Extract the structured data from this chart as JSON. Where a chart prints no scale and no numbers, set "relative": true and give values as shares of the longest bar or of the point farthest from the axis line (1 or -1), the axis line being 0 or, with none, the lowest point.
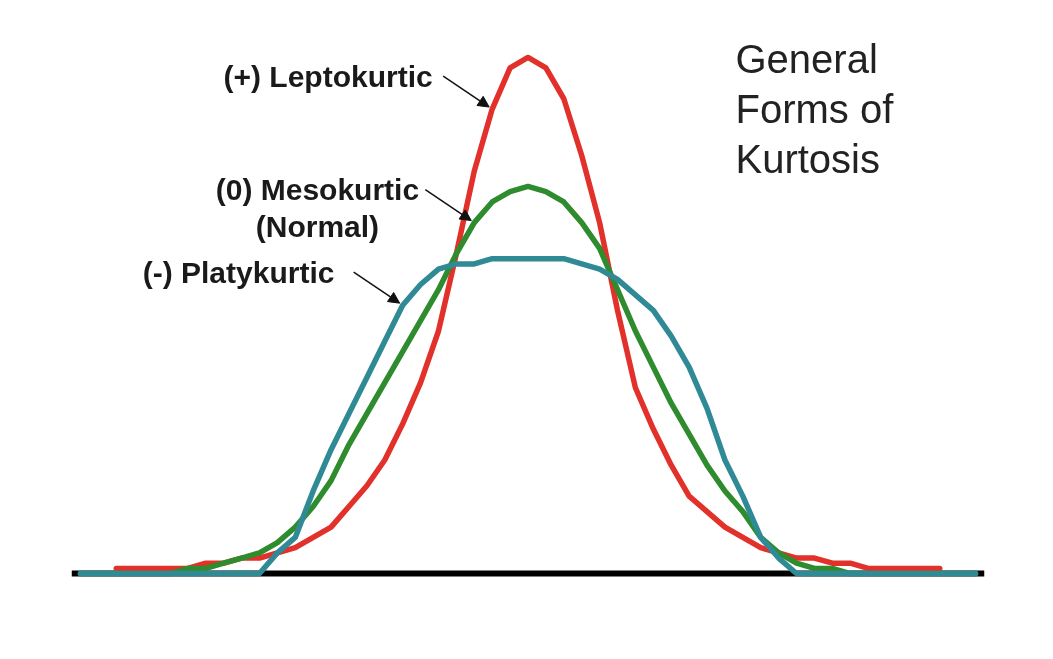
{
  "chart_data": {
    "type": "line",
    "title": "General Forms of Kurtosis",
    "relative": true,
    "categories": [
      null,
      null,
      null,
      null,
      null,
      null,
      null,
      null,
      null,
      null,
      null,
      null,
      null,
      null,
      null,
      null,
      null,
      null,
      null,
      null,
      null,
      null,
      null,
      null,
      null,
      null,
      null,
      null,
      null,
      null,
      null,
      null,
      null,
      null,
      null,
      null,
      null,
      null,
      null,
      null,
      null,
      null,
      null,
      null,
      null,
      null,
      null,
      null,
      null,
      null,
      null
    ],
    "series": [
      {
        "name": "(+) Leptokurtic",
        "color": "#e2302b",
        "values": [
          null,
          null,
          0.01,
          0.01,
          0.01,
          0.01,
          0.01,
          0.02,
          0.02,
          0.03,
          0.03,
          0.04,
          0.05,
          0.07,
          0.09,
          0.13,
          0.17,
          0.22,
          0.29,
          0.37,
          0.47,
          0.62,
          0.78,
          0.9,
          0.98,
          1,
          0.98,
          0.92,
          0.81,
          0.68,
          0.51,
          0.36,
          0.28,
          0.21,
          0.15,
          0.12,
          0.09,
          0.07,
          0.05,
          0.04,
          0.03,
          0.03,
          0.02,
          0.02,
          0.01,
          0.01,
          0.01,
          0.01,
          0.01,
          null,
          null
        ]
      },
      {
        "name": "(0) Mesokurtic (Normal)",
        "color": "#2e8b2e",
        "values": [
          0,
          0,
          0,
          0,
          0,
          0,
          0.01,
          0.01,
          0.02,
          0.03,
          0.04,
          0.06,
          0.09,
          0.13,
          0.18,
          0.25,
          0.31,
          0.37,
          0.43,
          0.49,
          0.55,
          0.62,
          0.68,
          0.72,
          0.74,
          0.75,
          0.74,
          0.72,
          0.68,
          0.63,
          0.55,
          0.47,
          0.4,
          0.33,
          0.27,
          0.21,
          0.16,
          0.12,
          0.07,
          0.04,
          0.02,
          0.01,
          0.01,
          0,
          0,
          0,
          0,
          0,
          0,
          0,
          0
        ]
      },
      {
        "name": "(-) Platykurtic",
        "color": "#2f8a96",
        "values": [
          0,
          0,
          0,
          0,
          0,
          0,
          0,
          0,
          0,
          0,
          0,
          0.04,
          0.07,
          0.16,
          0.24,
          0.31,
          0.38,
          0.45,
          0.52,
          0.56,
          0.59,
          0.6,
          0.6,
          0.61,
          0.61,
          0.61,
          0.61,
          0.61,
          0.6,
          0.59,
          0.57,
          0.54,
          0.51,
          0.46,
          0.4,
          0.32,
          0.22,
          0.15,
          0.07,
          0.03,
          0,
          0,
          0,
          0,
          0,
          0,
          0,
          0,
          0,
          0,
          0
        ]
      }
    ],
    "ref_lines": [
      {
        "axis": "y",
        "value": 0,
        "color": "#000000"
      }
    ]
  }
}
